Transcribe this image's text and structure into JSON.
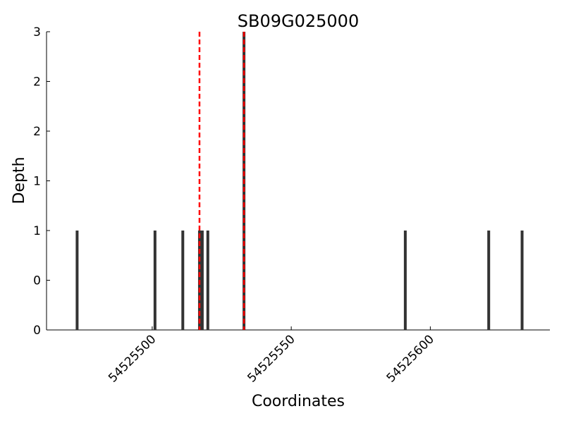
{
  "chart_data": {
    "type": "bar",
    "title": "SB09G025000",
    "xlabel": "Coordinates",
    "ylabel": "Depth",
    "x": [
      54525473,
      54525501,
      54525511,
      54525517,
      54525518,
      54525520,
      54525533,
      54525591,
      54525621,
      54525633
    ],
    "values": [
      1,
      1,
      1,
      1,
      1,
      1,
      3,
      1,
      1,
      1
    ],
    "color": "#333333",
    "vlines": [
      54525517,
      54525533
    ],
    "vline_color": "#ff0000",
    "xlim": [
      54525462,
      54525643
    ],
    "xticks": [
      54525500,
      54525550,
      54525600
    ],
    "ylim": [
      0,
      3
    ],
    "yticks": [
      0,
      {
        "value": 0.5,
        "label": "0"
      },
      1,
      {
        "value": 1.5,
        "label": "1"
      },
      2,
      {
        "value": 2.5,
        "label": "2"
      },
      3
    ]
  }
}
